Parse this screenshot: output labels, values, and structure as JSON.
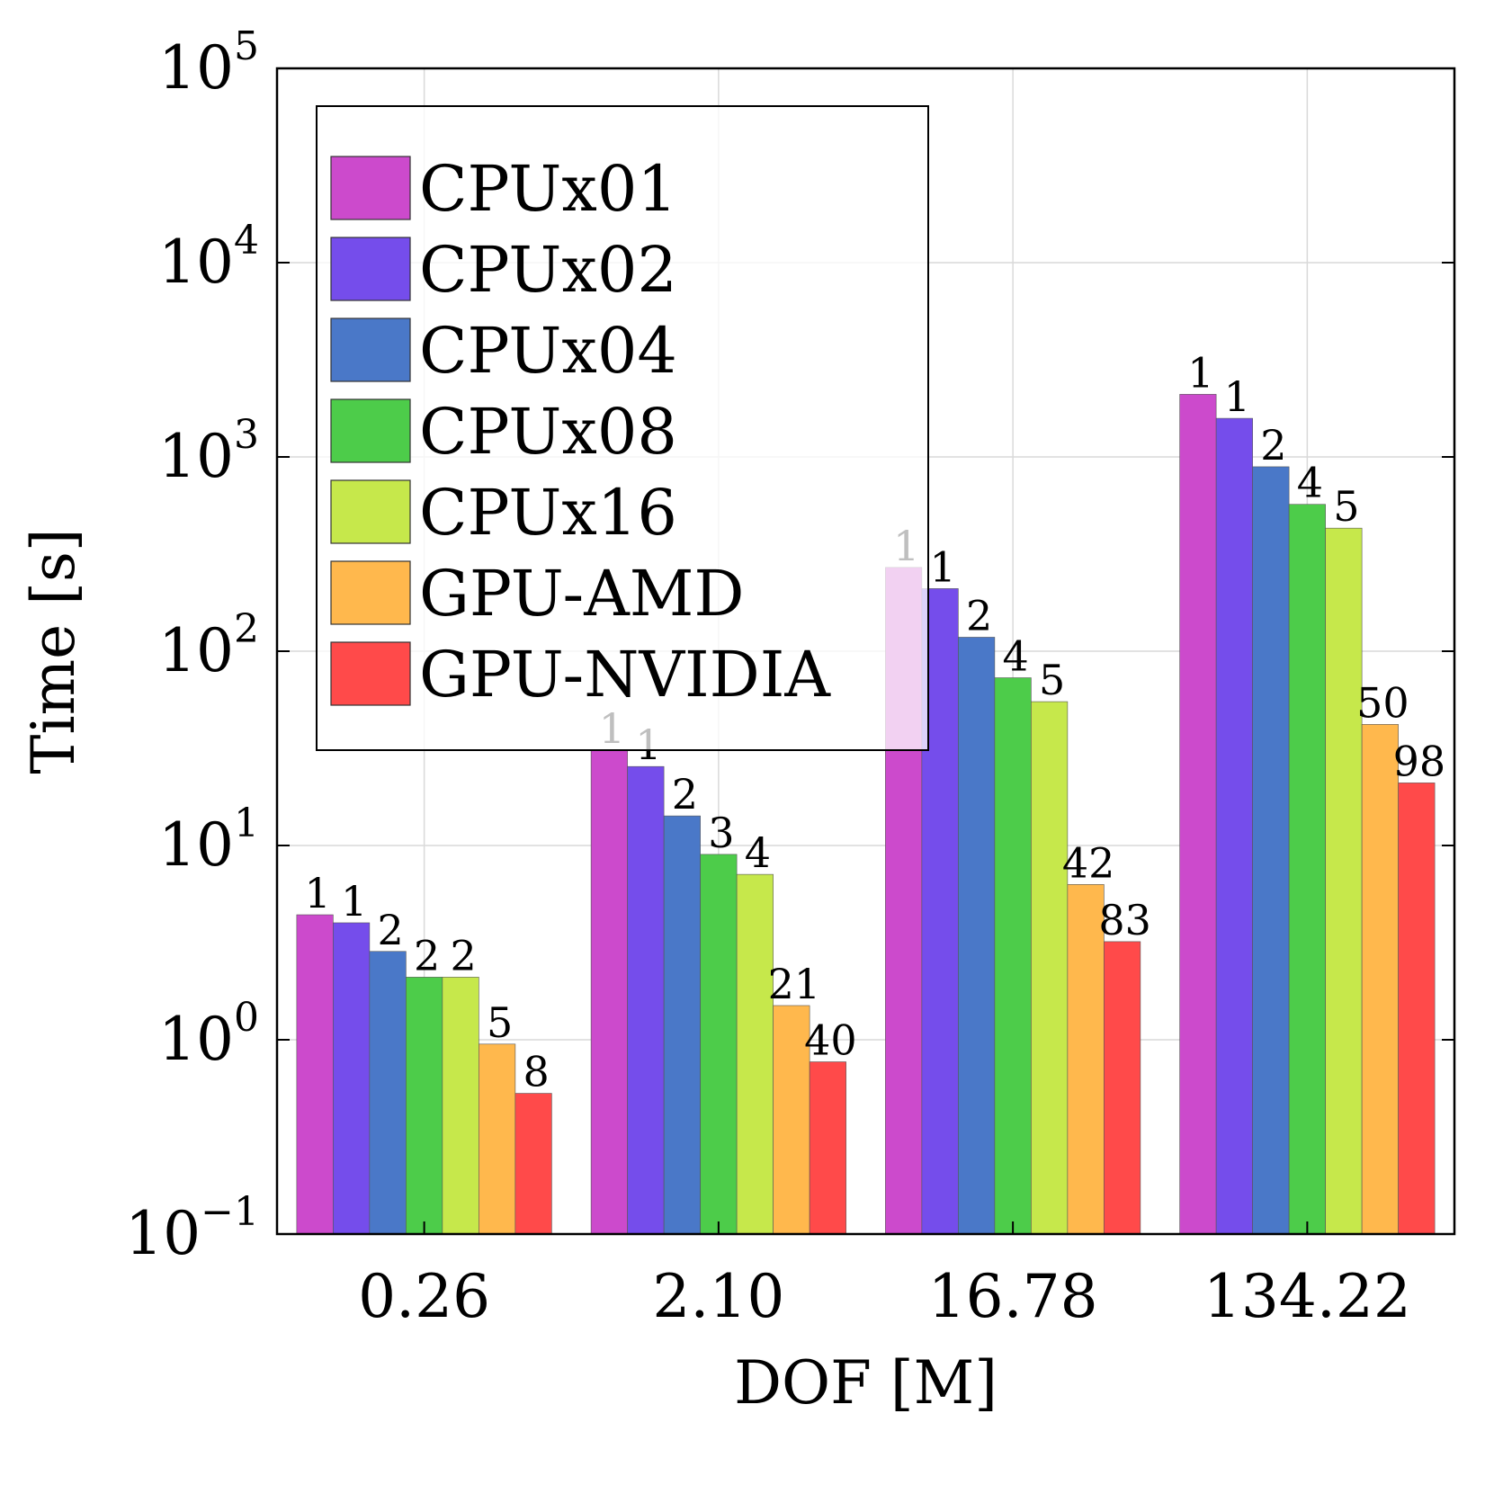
{
  "chart_data": {
    "type": "bar",
    "title": "",
    "xlabel": "DOF [M]",
    "ylabel": "Time [s]",
    "yscale": "log",
    "ylim": [
      0.1,
      100000
    ],
    "y_tick_exponents": [
      "-1",
      "0",
      "1",
      "2",
      "3",
      "4",
      "5"
    ],
    "grid": true,
    "legend_position": "top-left",
    "categories": [
      "0.26",
      "2.10",
      "16.78",
      "134.22"
    ],
    "series": [
      {
        "name": "CPUx01",
        "color": "#CC4ACC",
        "values": [
          4.4,
          31,
          270,
          2100
        ],
        "labels": [
          "1",
          "1",
          "1",
          "1"
        ]
      },
      {
        "name": "CPUx02",
        "color": "#754DEB",
        "values": [
          4.0,
          25.5,
          210,
          1580
        ],
        "labels": [
          "1",
          "1",
          "1",
          "1"
        ]
      },
      {
        "name": "CPUx04",
        "color": "#4A78C8",
        "values": [
          2.85,
          14.2,
          118,
          890
        ],
        "labels": [
          "2",
          "2",
          "2",
          "2"
        ]
      },
      {
        "name": "CPUx08",
        "color": "#4DCC4A",
        "values": [
          2.1,
          9.0,
          73,
          570
        ],
        "labels": [
          "2",
          "3",
          "4",
          "4"
        ]
      },
      {
        "name": "CPUx16",
        "color": "#C6E84B",
        "values": [
          2.1,
          7.1,
          55,
          430
        ],
        "labels": [
          "2",
          "4",
          "5",
          "5"
        ]
      },
      {
        "name": "GPU-AMD",
        "color": "#FFB84D",
        "values": [
          0.95,
          1.5,
          6.3,
          42
        ],
        "labels": [
          "5",
          "21",
          "42",
          "50"
        ]
      },
      {
        "name": "GPU-NVIDIA",
        "color": "#FF4A4A",
        "values": [
          0.53,
          0.77,
          3.2,
          21
        ],
        "labels": [
          "8",
          "40",
          "83",
          "98"
        ]
      }
    ]
  }
}
